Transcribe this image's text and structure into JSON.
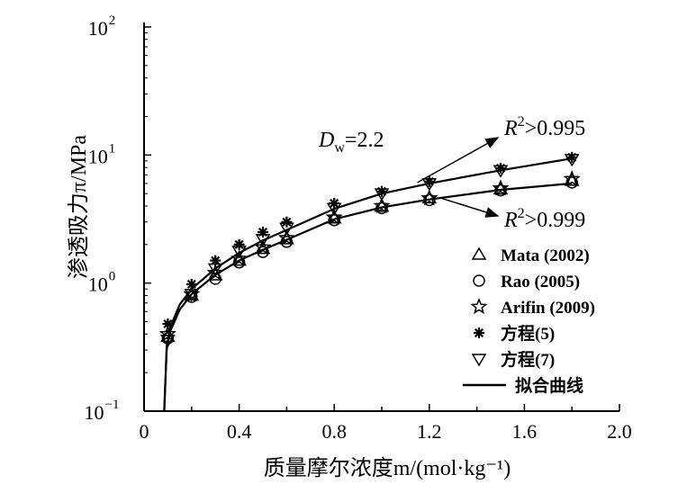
{
  "chart_data": {
    "type": "scatter",
    "xlabel": "质量摩尔浓度m/(mol·kg⁻¹)",
    "ylabel": "渗透吸力π/MPa",
    "xlim": [
      0,
      2.0
    ],
    "ylim": [
      0.1,
      100
    ],
    "y_scale": "log",
    "x_ticks": [
      "0",
      "0.4",
      "0.8",
      "1.2",
      "1.6",
      "2.0"
    ],
    "y_ticks": [
      {
        "base": "10",
        "exp": "2",
        "value": 100
      },
      {
        "base": "10",
        "exp": "1",
        "value": 10
      },
      {
        "base": "10",
        "exp": "0",
        "value": 1
      },
      {
        "base": "10",
        "exp": "−1",
        "value": 0.1
      }
    ],
    "grid": false,
    "legend_position": "lower-right",
    "annotations": {
      "dw": {
        "main": "D",
        "sub": "w",
        "rest": "=2.2"
      },
      "r2_upper": {
        "main": "R",
        "sup": "2",
        "rest": ">0.995"
      },
      "r2_lower": {
        "main": "R",
        "sup": "2",
        "rest": ">0.999"
      }
    },
    "series": [
      {
        "name": "Mata (2002)",
        "marker": "triangle",
        "x": [
          0.1,
          0.2,
          0.3,
          0.4,
          0.5,
          0.6,
          0.8,
          1.0,
          1.2,
          1.5,
          1.8
        ],
        "y": [
          0.38,
          0.8,
          1.15,
          1.5,
          1.85,
          2.2,
          3.2,
          3.95,
          4.6,
          5.4,
          6.3
        ]
      },
      {
        "name": "Rao (2005)",
        "marker": "circle",
        "x": [
          0.1,
          0.2,
          0.3,
          0.4,
          0.5,
          0.6,
          0.8,
          1.0,
          1.2,
          1.5,
          1.8
        ],
        "y": [
          0.37,
          0.78,
          1.08,
          1.45,
          1.75,
          2.1,
          3.1,
          3.85,
          4.45,
          5.3,
          6.1
        ]
      },
      {
        "name": "Arifin (2009)",
        "marker": "star",
        "x": [
          0.1,
          0.2,
          0.3,
          0.4,
          0.5,
          0.6,
          0.8,
          1.0,
          1.2,
          1.5,
          1.8
        ],
        "y": [
          0.4,
          0.82,
          1.2,
          1.55,
          1.9,
          2.25,
          3.25,
          4.0,
          4.6,
          5.5,
          6.5
        ]
      },
      {
        "name": "方程(5)",
        "marker": "asterisk",
        "x": [
          0.1,
          0.2,
          0.3,
          0.4,
          0.5,
          0.6,
          0.8,
          1.0,
          1.2,
          1.5,
          1.8
        ],
        "y": [
          0.48,
          0.98,
          1.5,
          2.0,
          2.5,
          3.0,
          4.2,
          5.2,
          6.2,
          7.9,
          9.6
        ]
      },
      {
        "name": "方程(7)",
        "marker": "triangle-down",
        "x": [
          0.1,
          0.2,
          0.3,
          0.4,
          0.5,
          0.6,
          0.8,
          1.0,
          1.2,
          1.5,
          1.8
        ],
        "y": [
          0.36,
          0.82,
          1.3,
          1.78,
          2.2,
          2.7,
          3.85,
          5.0,
          6.0,
          7.6,
          9.3
        ]
      },
      {
        "name": "拟合曲线",
        "marker": "line",
        "curves": [
          {
            "x": [
              0.085,
              0.095,
              0.11,
              0.15,
              0.2,
              0.3,
              0.4,
              0.5,
              0.6,
              0.8,
              1.0,
              1.2,
              1.5,
              1.8
            ],
            "y": [
              0.1,
              0.3,
              0.42,
              0.62,
              0.82,
              1.16,
              1.5,
              1.82,
              2.18,
              3.15,
              3.9,
              4.5,
              5.35,
              6.0
            ]
          },
          {
            "x": [
              0.085,
              0.095,
              0.11,
              0.15,
              0.2,
              0.3,
              0.4,
              0.5,
              0.6,
              0.8,
              1.0,
              1.2,
              1.5,
              1.8
            ],
            "y": [
              0.1,
              0.32,
              0.45,
              0.68,
              0.9,
              1.3,
              1.72,
              2.15,
              2.6,
              3.8,
              5.0,
              6.0,
              7.6,
              9.4
            ]
          }
        ]
      }
    ]
  }
}
